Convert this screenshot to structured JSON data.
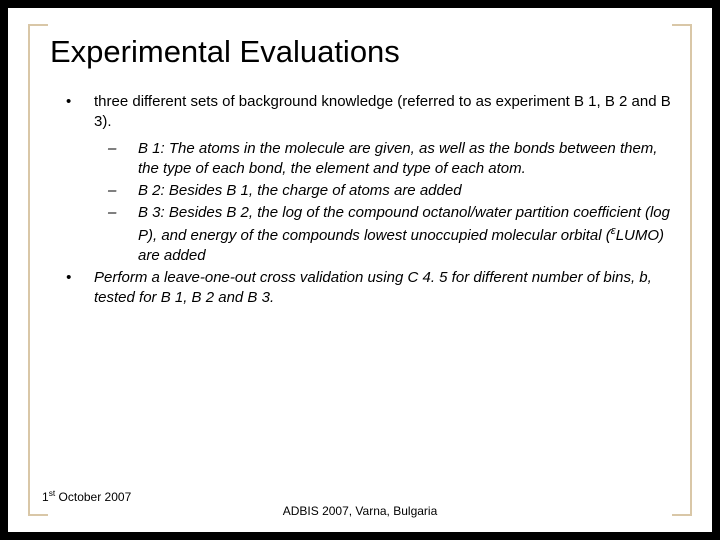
{
  "slide": {
    "title": "Experimental Evaluations",
    "bullets": [
      {
        "level": 1,
        "marker": "•",
        "text": "three different sets of background knowledge (referred to as experiment B 1, B 2 and B 3)."
      },
      {
        "level": 2,
        "marker": "–",
        "text": "B 1: The atoms in the molecule are given, as well as the bonds between them, the type of each bond, the element and type of each atom."
      },
      {
        "level": 2,
        "marker": "–",
        "text": "B 2: Besides B 1, the charge of atoms are added"
      },
      {
        "level": 2,
        "marker": "–",
        "text": "B 3: Besides B 2, the log of the compound octanol/water partition coefficient (log P), and energy of the compounds lowest unoccupied molecular orbital (εLUMO) are added",
        "has_epsilon": true
      },
      {
        "level": 1,
        "marker": "•",
        "italic": true,
        "text": "Perform a leave-one-out cross validation using C 4. 5 for different number of bins, b, tested for B 1, B 2 and B 3."
      }
    ],
    "footer_left": "1st October 2007",
    "footer_center": "ADBIS 2007, Varna, Bulgaria"
  },
  "colors": {
    "background_outer": "#000000",
    "background_slide": "#ffffff",
    "border_color": "#d9c7a7",
    "text_color": "#000000"
  },
  "typography": {
    "title_fontsize": 31,
    "body_fontsize": 15,
    "footer_fontsize": 12,
    "font_family": "Arial"
  }
}
